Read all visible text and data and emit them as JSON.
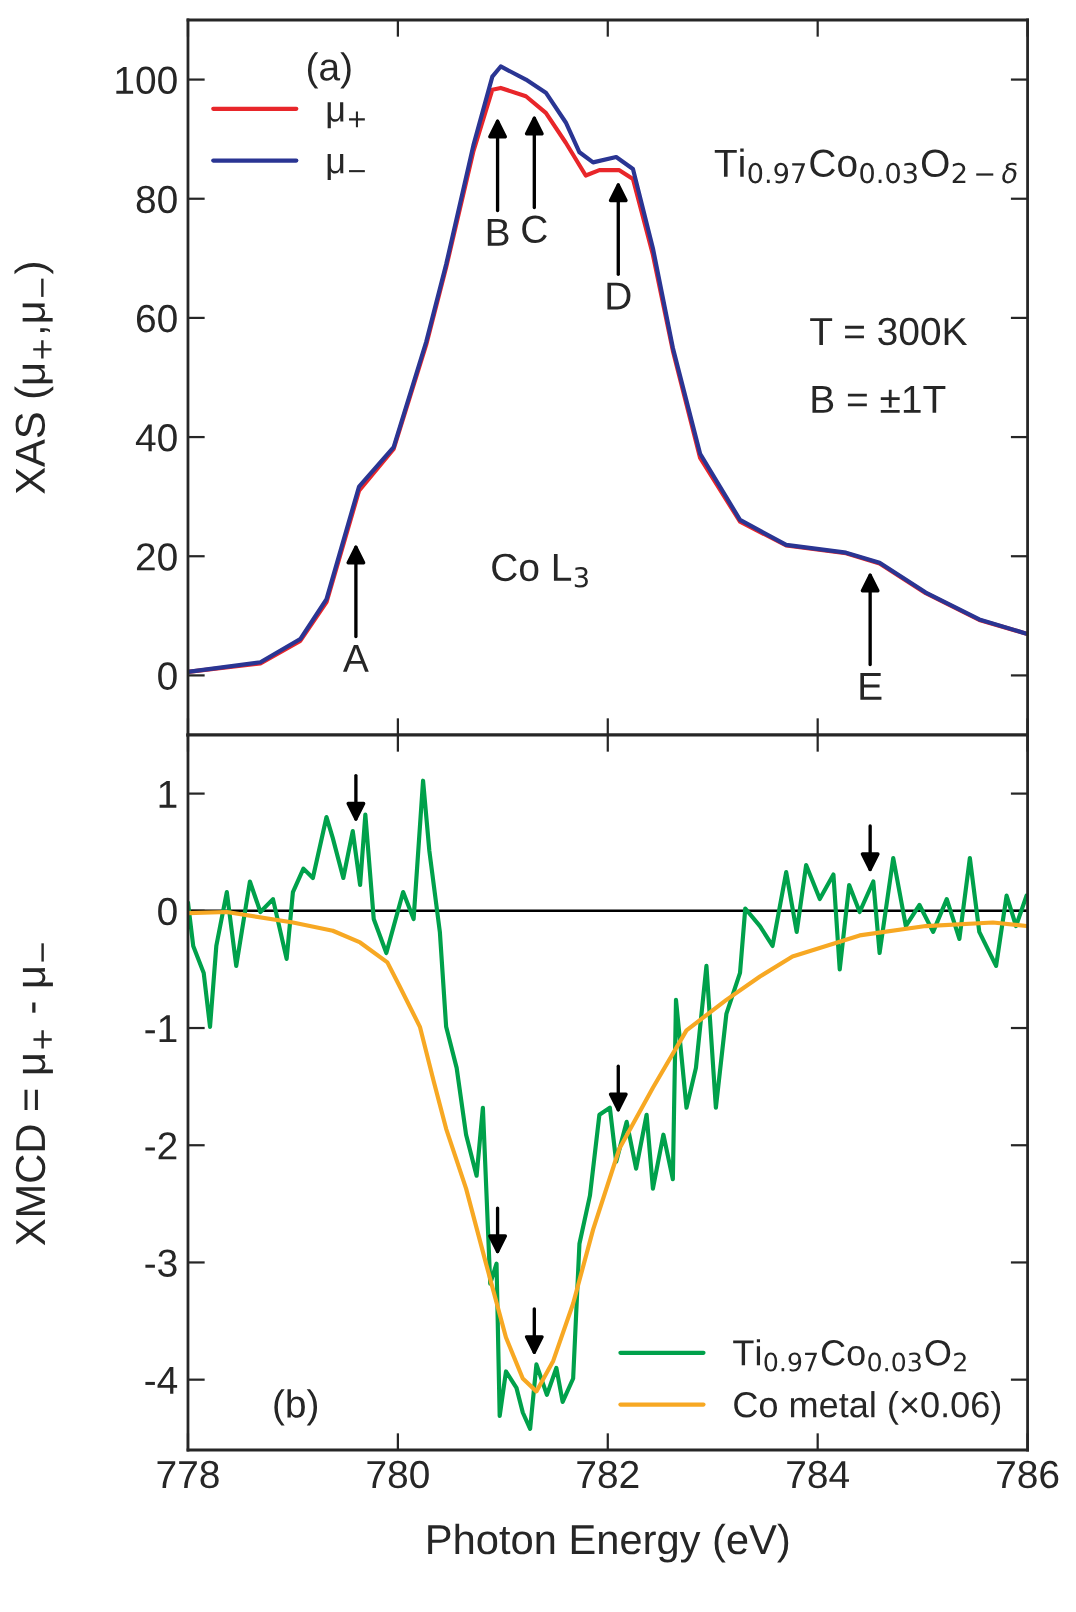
{
  "chart_data": [
    {
      "type": "line",
      "ylabel": "XAS (μ$_{+}$,μ$_{−}$)",
      "xlim": [
        778,
        786
      ],
      "xticks": [
        778,
        780,
        782,
        784,
        786
      ],
      "ylim": [
        -10,
        110
      ],
      "yticks": [
        0,
        20,
        40,
        60,
        80,
        100
      ],
      "tick_labels": "y",
      "legend": "top left",
      "grid": false,
      "series": [
        {
          "name": "μ$_{+}$",
          "color": "#e8262a",
          "x": [
            778,
            778.69,
            779.07,
            779.32,
            779.63,
            779.96,
            780.27,
            780.46,
            780.72,
            780.9,
            780.98,
            781.22,
            781.41,
            781.6,
            781.79,
            781.92,
            782.11,
            782.24,
            782.43,
            782.62,
            782.88,
            783.26,
            783.7,
            784.27,
            784.59,
            785.03,
            785.54,
            785.99
          ],
          "values": [
            0.6,
            2.0,
            5.8,
            12.3,
            31,
            38,
            55.5,
            68.5,
            88,
            98.3,
            98.6,
            97.2,
            94.4,
            89.4,
            83.9,
            84.8,
            84.8,
            83.3,
            70.6,
            54.5,
            36.5,
            25.8,
            21.8,
            20.5,
            18.8,
            13.8,
            9.3,
            7
          ]
        },
        {
          "name": "μ$_{−}$",
          "color": "#2a3593",
          "x": [
            778,
            778.69,
            779.07,
            779.32,
            779.63,
            779.96,
            780.27,
            780.46,
            780.72,
            780.9,
            780.98,
            781.22,
            781.41,
            781.6,
            781.73,
            781.86,
            782.08,
            782.24,
            782.43,
            782.62,
            782.88,
            783.26,
            783.7,
            784.27,
            784.59,
            785.03,
            785.54,
            785.99
          ],
          "values": [
            0.6,
            2.2,
            6.1,
            12.8,
            31.7,
            38.3,
            56,
            69,
            89,
            100.5,
            102.2,
            100,
            97.8,
            92.8,
            87.8,
            86.1,
            87,
            85,
            71.7,
            55,
            37.2,
            26.1,
            21.9,
            20.6,
            18.9,
            13.9,
            9.4,
            7
          ]
        }
      ],
      "annotations": [
        {
          "text": "A",
          "x": 779.6,
          "y": 24
        },
        {
          "text": "B",
          "x": 780.95,
          "y": 95.5
        },
        {
          "text": "C",
          "x": 781.3,
          "y": 96
        },
        {
          "text": "D",
          "x": 782.1,
          "y": 84.8
        },
        {
          "text": "E",
          "x": 784.5,
          "y": 19.3
        },
        "(a)",
        "Ti$_{0.97}$Co$_{0.03}$O$_{2−δ}$",
        "T = 300K",
        "B = ±1T",
        "Co L$_{3}$"
      ]
    },
    {
      "type": "line",
      "xlabel": "Photon Energy (eV)",
      "ylabel": "XMCD = μ$_{+}$ - μ$_{−}$",
      "xlim": [
        778,
        786
      ],
      "xticks": [
        778,
        780,
        782,
        784,
        786
      ],
      "ylim": [
        -4.6,
        1.5
      ],
      "yticks": [
        -4,
        -3,
        -2,
        -1,
        0,
        1
      ],
      "legend": "bottom right",
      "grid": false,
      "ref_lines": [
        {
          "axis": "y",
          "value": 0,
          "color": "#000000"
        }
      ],
      "series": [
        {
          "name": "Ti$_{0.97}$Co$_{0.03}$O$_{2}$",
          "color": "#00a14b",
          "x": [
            778,
            778.05,
            778.15,
            778.21,
            778.27,
            778.37,
            778.46,
            778.59,
            778.69,
            778.81,
            778.94,
            779.0,
            779.1,
            779.19,
            779.32,
            779.38,
            779.48,
            779.57,
            779.64,
            779.69,
            779.77,
            779.89,
            780.05,
            780.15,
            780.24,
            780.3,
            780.4,
            780.46,
            780.56,
            780.65,
            780.75,
            780.81,
            780.88,
            780.94,
            780.97,
            781.03,
            781.13,
            781.19,
            781.26,
            781.32,
            781.42,
            781.51,
            781.57,
            781.67,
            781.73,
            781.83,
            781.92,
            782.02,
            782.08,
            782.18,
            782.27,
            782.37,
            782.43,
            782.53,
            782.62,
            782.65,
            782.75,
            782.84,
            782.94,
            783.03,
            783.13,
            783.26,
            783.31,
            783.45,
            783.57,
            783.7,
            783.8,
            783.89,
            784.02,
            784.15,
            784.21,
            784.3,
            784.4,
            784.53,
            784.59,
            784.72,
            784.84,
            784.97,
            785.1,
            785.23,
            785.35,
            785.45,
            785.54,
            785.7,
            785.8,
            785.89,
            785.99
          ],
          "values": [
            0.07,
            -0.3,
            -0.53,
            -0.99,
            -0.3,
            0.16,
            -0.47,
            0.25,
            -0.01,
            0.1,
            -0.41,
            0.16,
            0.36,
            0.28,
            0.8,
            0.62,
            0.28,
            0.68,
            0.22,
            0.82,
            -0.07,
            -0.36,
            0.16,
            -0.07,
            1.11,
            0.51,
            -0.18,
            -0.99,
            -1.34,
            -1.91,
            -2.26,
            -1.68,
            -3.18,
            -3.01,
            -4.31,
            -3.93,
            -4.07,
            -4.28,
            -4.42,
            -3.87,
            -4.13,
            -3.9,
            -4.19,
            -3.99,
            -2.84,
            -2.43,
            -1.74,
            -1.68,
            -2.14,
            -1.8,
            -2.2,
            -1.74,
            -2.37,
            -1.91,
            -2.29,
            -0.76,
            -1.68,
            -1.34,
            -0.47,
            -1.68,
            -0.88,
            -0.53,
            0.02,
            -0.13,
            -0.3,
            0.33,
            -0.18,
            0.39,
            0.1,
            0.31,
            -0.5,
            0.22,
            -0.01,
            0.25,
            -0.36,
            0.45,
            -0.13,
            0.05,
            -0.18,
            0.1,
            -0.24,
            0.45,
            -0.18,
            -0.47,
            0.13,
            -0.13,
            0.13
          ]
        },
        {
          "name": "Co metal (×0.06)",
          "color": "#f7a823",
          "x": [
            778,
            778.37,
            779.0,
            779.38,
            779.64,
            779.9,
            780.02,
            780.21,
            780.34,
            780.46,
            780.65,
            780.84,
            781.03,
            781.19,
            781.32,
            781.48,
            781.67,
            781.86,
            782.11,
            782.43,
            782.75,
            783.13,
            783.45,
            783.76,
            784.4,
            785.03,
            785.67,
            785.99
          ],
          "values": [
            -0.02,
            -0.01,
            -0.1,
            -0.17,
            -0.27,
            -0.44,
            -0.65,
            -0.99,
            -1.45,
            -1.86,
            -2.37,
            -3.01,
            -3.64,
            -3.99,
            -4.1,
            -3.84,
            -3.35,
            -2.72,
            -2.03,
            -1.51,
            -1.02,
            -0.76,
            -0.56,
            -0.39,
            -0.21,
            -0.13,
            -0.1,
            -0.13
          ]
        }
      ],
      "annotations": [
        "(b)"
      ]
    }
  ]
}
